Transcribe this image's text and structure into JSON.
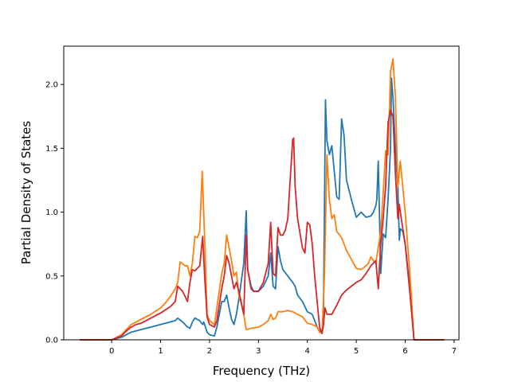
{
  "chart_data": {
    "type": "line",
    "title": "",
    "xlabel": "Frequency (THz)",
    "ylabel": "Partial Density of States",
    "xlim": [
      -0.98,
      7.1
    ],
    "ylim": [
      0.0,
      2.3
    ],
    "xticks": [
      "0",
      "1",
      "2",
      "3",
      "4",
      "5",
      "6",
      "7"
    ],
    "xtick_values": [
      0,
      1,
      2,
      3,
      4,
      5,
      6,
      7
    ],
    "yticks": [
      "0.0",
      "0.5",
      "1.0",
      "1.5",
      "2.0"
    ],
    "ytick_values": [
      0.0,
      0.5,
      1.0,
      1.5,
      2.0
    ],
    "grid": false,
    "legend": false,
    "series": [
      {
        "color": "#1f77b4",
        "x": [
          -0.65,
          0.0,
          0.2,
          0.3,
          0.4,
          0.5,
          0.6,
          0.8,
          1.0,
          1.2,
          1.3,
          1.35,
          1.45,
          1.55,
          1.6,
          1.65,
          1.7,
          1.8,
          1.86,
          1.88,
          1.9,
          1.95,
          2.0,
          2.1,
          2.15,
          2.25,
          2.3,
          2.35,
          2.4,
          2.45,
          2.5,
          2.55,
          2.6,
          2.7,
          2.75,
          2.78,
          2.85,
          2.9,
          3.0,
          3.1,
          3.2,
          3.25,
          3.3,
          3.35,
          3.4,
          3.45,
          3.5,
          3.6,
          3.7,
          3.75,
          3.8,
          3.9,
          4.0,
          4.1,
          4.2,
          4.25,
          4.3,
          4.33,
          4.37,
          4.4,
          4.45,
          4.5,
          4.6,
          4.65,
          4.7,
          4.75,
          4.8,
          4.9,
          5.0,
          5.1,
          5.2,
          5.3,
          5.35,
          5.4,
          5.42,
          5.45,
          5.5,
          5.55,
          5.6,
          5.65,
          5.7,
          5.72,
          5.75,
          5.8,
          5.85,
          5.88,
          5.9,
          5.95,
          6.0,
          6.1,
          6.18,
          6.8
        ],
        "y": [
          0.0,
          0.0,
          0.02,
          0.04,
          0.06,
          0.07,
          0.08,
          0.1,
          0.12,
          0.14,
          0.15,
          0.17,
          0.14,
          0.1,
          0.09,
          0.14,
          0.17,
          0.15,
          0.12,
          0.14,
          0.12,
          0.06,
          0.04,
          0.03,
          0.1,
          0.3,
          0.3,
          0.35,
          0.25,
          0.16,
          0.12,
          0.2,
          0.32,
          0.6,
          1.01,
          0.55,
          0.42,
          0.38,
          0.38,
          0.42,
          0.5,
          0.68,
          0.42,
          0.4,
          0.73,
          0.62,
          0.55,
          0.5,
          0.45,
          0.42,
          0.35,
          0.3,
          0.22,
          0.2,
          0.1,
          0.07,
          0.06,
          0.22,
          1.88,
          1.56,
          1.45,
          1.52,
          1.12,
          1.1,
          1.73,
          1.6,
          1.25,
          1.1,
          0.96,
          1.0,
          0.96,
          0.97,
          1.0,
          1.05,
          1.1,
          1.4,
          0.52,
          0.83,
          0.8,
          1.1,
          1.5,
          2.05,
          1.9,
          1.5,
          1.2,
          0.78,
          0.87,
          0.85,
          0.75,
          0.4,
          0.0,
          0.0
        ]
      },
      {
        "color": "#ff7f0e",
        "x": [
          -0.65,
          0.0,
          0.2,
          0.3,
          0.4,
          0.5,
          0.6,
          0.8,
          1.0,
          1.1,
          1.2,
          1.3,
          1.35,
          1.4,
          1.5,
          1.55,
          1.6,
          1.65,
          1.7,
          1.75,
          1.8,
          1.85,
          1.9,
          1.95,
          2.0,
          2.1,
          2.15,
          2.25,
          2.3,
          2.35,
          2.4,
          2.45,
          2.5,
          2.55,
          2.6,
          2.65,
          2.7,
          2.75,
          2.85,
          3.0,
          3.1,
          3.2,
          3.25,
          3.3,
          3.35,
          3.4,
          3.5,
          3.6,
          3.7,
          3.8,
          3.9,
          4.0,
          4.1,
          4.2,
          4.25,
          4.3,
          4.35,
          4.4,
          4.45,
          4.5,
          4.55,
          4.6,
          4.7,
          4.8,
          4.9,
          5.0,
          5.1,
          5.2,
          5.25,
          5.3,
          5.35,
          5.4,
          5.5,
          5.55,
          5.6,
          5.65,
          5.7,
          5.75,
          5.8,
          5.85,
          5.9,
          6.0,
          6.1,
          6.18,
          6.8
        ],
        "y": [
          0.0,
          0.0,
          0.04,
          0.08,
          0.12,
          0.14,
          0.16,
          0.2,
          0.25,
          0.29,
          0.34,
          0.4,
          0.45,
          0.61,
          0.58,
          0.58,
          0.5,
          0.6,
          0.81,
          0.8,
          0.85,
          1.32,
          0.8,
          0.2,
          0.15,
          0.12,
          0.25,
          0.52,
          0.6,
          0.82,
          0.72,
          0.62,
          0.5,
          0.53,
          0.35,
          0.28,
          0.2,
          0.08,
          0.09,
          0.1,
          0.12,
          0.15,
          0.2,
          0.16,
          0.17,
          0.22,
          0.22,
          0.23,
          0.22,
          0.2,
          0.18,
          0.13,
          0.12,
          0.1,
          0.06,
          0.05,
          0.5,
          1.45,
          1.1,
          0.95,
          0.98,
          0.85,
          0.8,
          0.7,
          0.63,
          0.56,
          0.55,
          0.58,
          0.6,
          0.65,
          0.62,
          0.6,
          0.85,
          1.15,
          1.48,
          1.45,
          2.1,
          2.2,
          1.9,
          1.2,
          1.4,
          1.0,
          0.5,
          0.0,
          0.0
        ]
      },
      {
        "color": "#d62728",
        "x": [
          -0.65,
          0.0,
          0.2,
          0.3,
          0.4,
          0.5,
          0.6,
          0.8,
          1.0,
          1.2,
          1.3,
          1.35,
          1.45,
          1.55,
          1.6,
          1.65,
          1.7,
          1.8,
          1.86,
          1.9,
          1.95,
          2.0,
          2.1,
          2.15,
          2.25,
          2.3,
          2.35,
          2.4,
          2.45,
          2.5,
          2.55,
          2.6,
          2.7,
          2.75,
          2.78,
          2.85,
          2.9,
          3.0,
          3.1,
          3.2,
          3.25,
          3.3,
          3.35,
          3.4,
          3.45,
          3.5,
          3.55,
          3.6,
          3.7,
          3.72,
          3.75,
          3.8,
          3.9,
          3.95,
          4.0,
          4.05,
          4.1,
          4.15,
          4.2,
          4.25,
          4.3,
          4.33,
          4.36,
          4.4,
          4.5,
          4.6,
          4.7,
          4.8,
          4.9,
          5.0,
          5.1,
          5.2,
          5.3,
          5.4,
          5.45,
          5.5,
          5.55,
          5.6,
          5.65,
          5.7,
          5.75,
          5.8,
          5.85,
          5.88,
          5.92,
          6.0,
          6.1,
          6.18,
          6.8
        ],
        "y": [
          0.0,
          0.0,
          0.03,
          0.07,
          0.1,
          0.12,
          0.13,
          0.17,
          0.21,
          0.26,
          0.3,
          0.42,
          0.38,
          0.3,
          0.45,
          0.55,
          0.54,
          0.58,
          0.81,
          0.5,
          0.18,
          0.12,
          0.1,
          0.15,
          0.4,
          0.5,
          0.66,
          0.6,
          0.5,
          0.4,
          0.45,
          0.38,
          0.2,
          0.82,
          0.55,
          0.4,
          0.38,
          0.38,
          0.45,
          0.6,
          0.92,
          0.52,
          0.5,
          0.88,
          0.82,
          0.82,
          0.86,
          0.95,
          1.57,
          1.58,
          1.2,
          0.95,
          0.72,
          0.68,
          0.92,
          0.9,
          0.75,
          0.5,
          0.3,
          0.1,
          0.05,
          0.12,
          0.25,
          0.2,
          0.2,
          0.27,
          0.35,
          0.39,
          0.42,
          0.45,
          0.47,
          0.52,
          0.58,
          0.62,
          0.4,
          0.75,
          0.95,
          1.2,
          1.7,
          1.8,
          1.75,
          1.3,
          0.95,
          1.06,
          0.95,
          0.75,
          0.35,
          0.0,
          0.0
        ]
      }
    ]
  }
}
